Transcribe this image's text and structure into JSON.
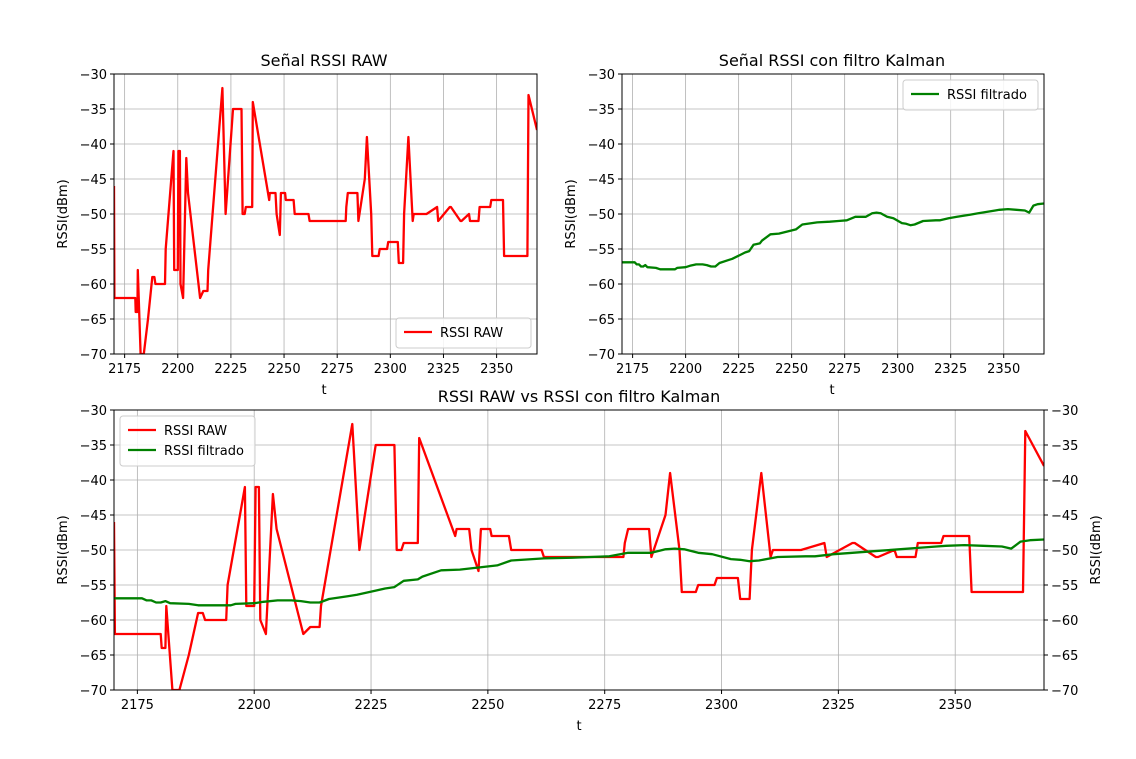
{
  "figure": {
    "background": "#ffffff"
  },
  "colors": {
    "raw": "#ff0000",
    "filtered": "#008000",
    "grid": "#b0b0b0",
    "axes": "#000000"
  },
  "chart_data": [
    {
      "id": "raw",
      "type": "line",
      "title": "Señal RSSI RAW",
      "xlabel": "t",
      "ylabel": "RSSI(dBm)",
      "xlim": [
        2170,
        2369
      ],
      "ylim": [
        -70,
        -30
      ],
      "xticks": [
        2175,
        2200,
        2225,
        2250,
        2275,
        2300,
        2325,
        2350
      ],
      "yticks": [
        -30,
        -35,
        -40,
        -45,
        -50,
        -55,
        -60,
        -65,
        -70
      ],
      "grid": true,
      "legend": {
        "position": "lower-right",
        "entries": [
          {
            "label": "RSSI RAW",
            "series": "raw"
          }
        ]
      },
      "series": [
        "raw"
      ]
    },
    {
      "id": "kalman",
      "type": "line",
      "title": "Señal RSSI con filtro Kalman",
      "xlabel": "t",
      "ylabel": "RSSI(dBm)",
      "xlim": [
        2170,
        2369
      ],
      "ylim": [
        -70,
        -30
      ],
      "xticks": [
        2175,
        2200,
        2225,
        2250,
        2275,
        2300,
        2325,
        2350
      ],
      "yticks": [
        -30,
        -35,
        -40,
        -45,
        -50,
        -55,
        -60,
        -65,
        -70
      ],
      "grid": true,
      "legend": {
        "position": "top-right",
        "entries": [
          {
            "label": "RSSI filtrado",
            "series": "filtered"
          }
        ]
      },
      "series": [
        "filtered"
      ]
    },
    {
      "id": "both",
      "type": "line",
      "title": "RSSI RAW vs RSSI con filtro Kalman",
      "xlabel": "t",
      "ylabel": "RSSI(dBm)",
      "ylabel_right": "RSSI(dBm)",
      "xlim": [
        2170,
        2369
      ],
      "ylim": [
        -70,
        -30
      ],
      "xticks": [
        2175,
        2200,
        2225,
        2250,
        2275,
        2300,
        2325,
        2350
      ],
      "yticks": [
        -30,
        -35,
        -40,
        -45,
        -50,
        -55,
        -60,
        -65,
        -70
      ],
      "grid": true,
      "legend": {
        "position": "top-left",
        "entries": [
          {
            "label": "RSSI RAW",
            "series": "raw"
          },
          {
            "label": "RSSI filtrado",
            "series": "filtered"
          }
        ]
      },
      "series": [
        "raw",
        "filtered"
      ]
    }
  ],
  "series": {
    "raw": {
      "name": "RSSI RAW",
      "color": "#ff0000",
      "x": [
        2170,
        2170.2,
        2177,
        2177.2,
        2180,
        2180.2,
        2181,
        2181.2,
        2182.5,
        2184,
        2186,
        2188,
        2189,
        2189.5,
        2194,
        2194.3,
        2198,
        2198.3,
        2200,
        2200.3,
        2201,
        2201.3,
        2202.5,
        2204,
        2204.8,
        2210.5,
        2212,
        2214,
        2214.3,
        2221,
        2222.5,
        2226,
        2230,
        2230.5,
        2231.5,
        2232,
        2235,
        2235.3,
        2243,
        2243.3,
        2246,
        2246.5,
        2248,
        2248.5,
        2250.5,
        2250.8,
        2254.5,
        2255,
        2261.5,
        2262,
        2267,
        2268,
        2279,
        2279.3,
        2280,
        2280.3,
        2284.5,
        2285,
        2288,
        2289,
        2291,
        2291.5,
        2294.5,
        2295,
        2298.5,
        2299,
        2303.5,
        2304,
        2306,
        2306.5,
        2308.5,
        2310.5,
        2311,
        2317,
        2322,
        2322.5,
        2328,
        2328.5,
        2333,
        2333.5,
        2337,
        2337.5,
        2341.5,
        2342,
        2347,
        2347.5,
        2353,
        2353.5,
        2364.5,
        2365,
        2369
      ],
      "y": [
        -46,
        -62,
        -62,
        -62,
        -62,
        -64,
        -64,
        -58,
        -70,
        -70,
        -65,
        -59,
        -59,
        -60,
        -60,
        -55,
        -41,
        -58,
        -58,
        -41,
        -41,
        -60,
        -62,
        -42,
        -47,
        -62,
        -61,
        -61,
        -58,
        -32,
        -50,
        -35,
        -35,
        -50,
        -50,
        -49,
        -49,
        -34,
        -48,
        -47,
        -47,
        -50,
        -53,
        -47,
        -47,
        -48,
        -48,
        -50,
        -50,
        -51,
        -51,
        -51,
        -51,
        -49,
        -47,
        -47,
        -47,
        -51,
        -45,
        -39,
        -50,
        -56,
        -56,
        -55,
        -55,
        -54,
        -54,
        -57,
        -57,
        -50,
        -39,
        -51,
        -50,
        -50,
        -49,
        -51,
        -49,
        -49,
        -51,
        -51,
        -50,
        -51,
        -51,
        -49,
        -49,
        -48,
        -48,
        -56,
        -56,
        -33,
        -38
      ]
    },
    "filtered": {
      "name": "RSSI filtrado",
      "color": "#008000",
      "x": [
        2170,
        2176,
        2177,
        2178,
        2179,
        2180,
        2181,
        2182,
        2186,
        2188,
        2190,
        2195,
        2196,
        2200,
        2202,
        2205,
        2208,
        2210,
        2212,
        2214,
        2216,
        2220,
        2222,
        2226,
        2228,
        2230,
        2232,
        2235,
        2236,
        2240,
        2244,
        2248,
        2252,
        2255,
        2262,
        2268,
        2272,
        2276,
        2280,
        2285,
        2288,
        2290,
        2292,
        2295,
        2298,
        2302,
        2304,
        2306,
        2308,
        2312,
        2318,
        2320,
        2324,
        2328,
        2334,
        2338,
        2342,
        2346,
        2348,
        2352,
        2356,
        2360,
        2362,
        2364,
        2366,
        2369
      ],
      "y": [
        -56.9,
        -56.9,
        -57.2,
        -57.2,
        -57.5,
        -57.5,
        -57.3,
        -57.6,
        -57.7,
        -57.9,
        -57.9,
        -57.9,
        -57.7,
        -57.6,
        -57.4,
        -57.2,
        -57.2,
        -57.3,
        -57.5,
        -57.5,
        -57.0,
        -56.6,
        -56.4,
        -55.8,
        -55.5,
        -55.3,
        -54.4,
        -54.2,
        -53.8,
        -52.9,
        -52.8,
        -52.5,
        -52.2,
        -51.5,
        -51.2,
        -51.1,
        -51.0,
        -50.9,
        -50.4,
        -50.4,
        -49.9,
        -49.8,
        -49.9,
        -50.4,
        -50.6,
        -51.3,
        -51.4,
        -51.6,
        -51.5,
        -51.0,
        -50.9,
        -50.9,
        -50.6,
        -50.4,
        -50.1,
        -49.9,
        -49.7,
        -49.5,
        -49.4,
        -49.3,
        -49.4,
        -49.5,
        -49.8,
        -48.8,
        -48.6,
        -48.5
      ]
    }
  }
}
